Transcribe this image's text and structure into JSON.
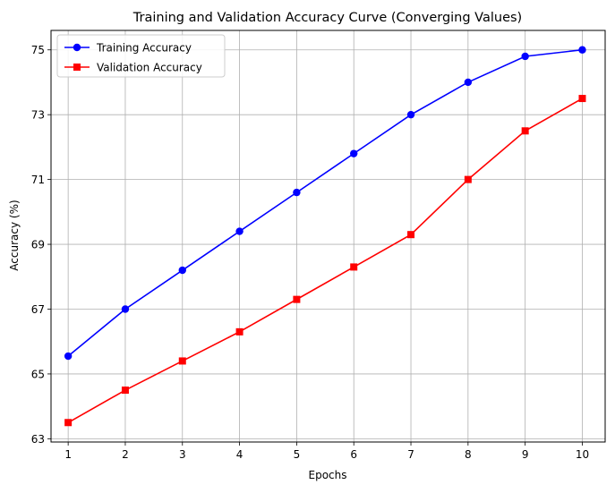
{
  "chart_data": {
    "type": "line",
    "title": "Training and Validation Accuracy Curve (Converging Values)",
    "xlabel": "Epochs",
    "ylabel": "Accuracy (%)",
    "x": [
      1,
      2,
      3,
      4,
      5,
      6,
      7,
      8,
      9,
      10
    ],
    "xlim": [
      0.7,
      10.4
    ],
    "ylim": [
      62.9,
      75.6
    ],
    "yticks": [
      63,
      65,
      67,
      69,
      71,
      73,
      75
    ],
    "grid": true,
    "legend_position": "top-left",
    "series": [
      {
        "name": "Training Accuracy",
        "color": "#0000ff",
        "marker": "circle",
        "values": [
          65.55,
          67.0,
          68.2,
          69.4,
          70.6,
          71.8,
          73.0,
          74.0,
          74.8,
          75.0
        ]
      },
      {
        "name": "Validation Accuracy",
        "color": "#ff0000",
        "marker": "square",
        "values": [
          63.5,
          64.5,
          65.4,
          66.3,
          67.3,
          68.3,
          69.3,
          71.0,
          72.5,
          73.5
        ]
      }
    ]
  }
}
